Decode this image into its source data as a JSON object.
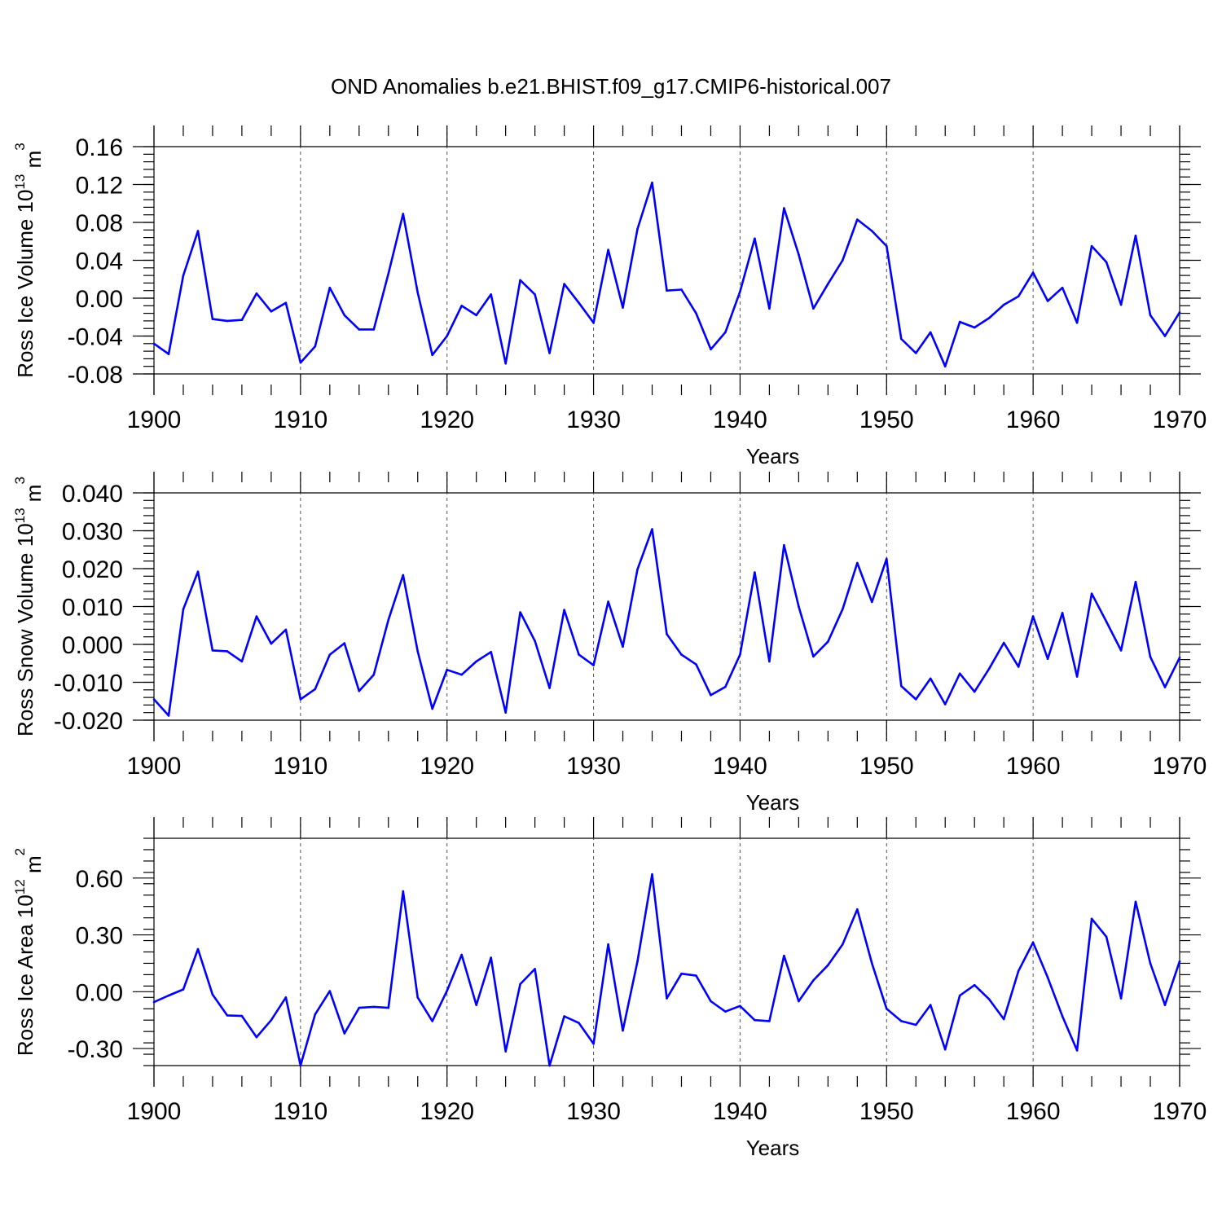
{
  "title": "OND Anomalies b.e21.BHIST.f09_g17.CMIP6-historical.007",
  "colors": {
    "line": "#0000ff",
    "axis": "#000000",
    "grid": "#555555"
  },
  "chart_data": [
    {
      "type": "line",
      "xlabel": "Years",
      "ylabel_main": "Ross Ice Volume 10",
      "ylabel_exp": "13",
      "ylabel_unit": " m",
      "ylabel_unit_exp": "3",
      "xlim": [
        1900,
        1970
      ],
      "ylim": [
        -0.08,
        0.16
      ],
      "y_major_ticks": [
        -0.08,
        -0.04,
        0.0,
        0.04,
        0.08,
        0.12,
        0.16
      ],
      "y_tick_labels": [
        "-0.08",
        "-0.04",
        "0.00",
        "0.04",
        "0.08",
        "0.12",
        "0.16"
      ],
      "y_minor_step": 0.008,
      "x_major_ticks": [
        1900,
        1910,
        1920,
        1930,
        1940,
        1950,
        1960,
        1970
      ],
      "x_tick_labels": [
        "1900",
        "1910",
        "1920",
        "1930",
        "1940",
        "1950",
        "1960",
        "1970"
      ],
      "grid_x": [
        1910,
        1920,
        1930,
        1940,
        1950,
        1960
      ],
      "x": [
        1900,
        1901,
        1902,
        1903,
        1904,
        1905,
        1906,
        1907,
        1908,
        1909,
        1910,
        1911,
        1912,
        1913,
        1914,
        1915,
        1916,
        1917,
        1918,
        1919,
        1920,
        1921,
        1922,
        1923,
        1924,
        1925,
        1926,
        1927,
        1928,
        1929,
        1930,
        1931,
        1932,
        1933,
        1934,
        1935,
        1936,
        1937,
        1938,
        1939,
        1940,
        1941,
        1942,
        1943,
        1944,
        1945,
        1946,
        1947,
        1948,
        1949,
        1950,
        1951,
        1952,
        1953,
        1954,
        1955,
        1956,
        1957,
        1958,
        1959,
        1960,
        1961,
        1962,
        1963,
        1964,
        1965,
        1966,
        1967,
        1968,
        1969,
        1970
      ],
      "values": [
        -0.048,
        -0.059,
        0.024,
        0.071,
        -0.022,
        -0.024,
        -0.023,
        0.005,
        -0.014,
        -0.005,
        -0.068,
        -0.051,
        0.011,
        -0.018,
        -0.033,
        -0.033,
        0.026,
        0.089,
        0.006,
        -0.06,
        -0.04,
        -0.008,
        -0.018,
        0.004,
        -0.069,
        0.019,
        0.004,
        -0.058,
        0.015,
        -0.005,
        -0.026,
        0.051,
        -0.01,
        0.073,
        0.122,
        0.008,
        0.009,
        -0.016,
        -0.054,
        -0.036,
        0.007,
        0.063,
        -0.011,
        0.095,
        0.046,
        -0.011,
        0.015,
        0.04,
        0.083,
        0.071,
        0.055,
        -0.043,
        -0.058,
        -0.036,
        -0.072,
        -0.025,
        -0.031,
        -0.021,
        -0.007,
        0.002,
        0.027,
        -0.003,
        0.011,
        -0.026,
        0.055,
        0.038,
        -0.007,
        0.066,
        -0.018,
        -0.04,
        -0.015
      ]
    },
    {
      "type": "line",
      "xlabel": "Years",
      "ylabel_main": "Ross Snow Volume 10",
      "ylabel_exp": "13",
      "ylabel_unit": " m",
      "ylabel_unit_exp": "3",
      "xlim": [
        1900,
        1970
      ],
      "ylim": [
        -0.02,
        0.04
      ],
      "y_major_ticks": [
        -0.02,
        -0.01,
        0.0,
        0.01,
        0.02,
        0.03,
        0.04
      ],
      "y_tick_labels": [
        "-0.020",
        "-0.010",
        "0.000",
        "0.010",
        "0.020",
        "0.030",
        "0.040"
      ],
      "y_minor_step": 0.002,
      "x_major_ticks": [
        1900,
        1910,
        1920,
        1930,
        1940,
        1950,
        1960,
        1970
      ],
      "x_tick_labels": [
        "1900",
        "1910",
        "1920",
        "1930",
        "1940",
        "1950",
        "1960",
        "1970"
      ],
      "grid_x": [
        1910,
        1920,
        1930,
        1940,
        1950,
        1960
      ],
      "x": [
        1900,
        1901,
        1902,
        1903,
        1904,
        1905,
        1906,
        1907,
        1908,
        1909,
        1910,
        1911,
        1912,
        1913,
        1914,
        1915,
        1916,
        1917,
        1918,
        1919,
        1920,
        1921,
        1922,
        1923,
        1924,
        1925,
        1926,
        1927,
        1928,
        1929,
        1930,
        1931,
        1932,
        1933,
        1934,
        1935,
        1936,
        1937,
        1938,
        1939,
        1940,
        1941,
        1942,
        1943,
        1944,
        1945,
        1946,
        1947,
        1948,
        1949,
        1950,
        1951,
        1952,
        1953,
        1954,
        1955,
        1956,
        1957,
        1958,
        1959,
        1960,
        1961,
        1962,
        1963,
        1964,
        1965,
        1966,
        1967,
        1968,
        1969,
        1970
      ],
      "values": [
        -0.0145,
        -0.0188,
        0.0093,
        0.0192,
        -0.0016,
        -0.0018,
        -0.0045,
        0.0074,
        0.0002,
        0.0039,
        -0.0145,
        -0.0118,
        -0.0027,
        0.0003,
        -0.0123,
        -0.008,
        0.0065,
        0.0183,
        -0.0018,
        -0.017,
        -0.0067,
        -0.008,
        -0.0045,
        -0.002,
        -0.018,
        0.0085,
        0.0009,
        -0.0115,
        0.0091,
        -0.0027,
        -0.0055,
        0.0113,
        -0.0006,
        0.0198,
        0.0304,
        0.0027,
        -0.0027,
        -0.0053,
        -0.0134,
        -0.0112,
        -0.0027,
        0.019,
        -0.0045,
        0.0262,
        0.01,
        -0.0032,
        0.0007,
        0.0093,
        0.0215,
        0.0112,
        0.0226,
        -0.011,
        -0.0145,
        -0.009,
        -0.0158,
        -0.0077,
        -0.0125,
        -0.0064,
        0.0004,
        -0.0059,
        0.0074,
        -0.0038,
        0.0083,
        -0.0085,
        0.0134,
        0.006,
        -0.0016,
        0.0165,
        -0.0033,
        -0.0113,
        -0.0035
      ]
    },
    {
      "type": "line",
      "xlabel": "Years",
      "ylabel_main": "Ross Ice Area 10",
      "ylabel_exp": "12",
      "ylabel_unit": " m",
      "ylabel_unit_exp": "2",
      "xlim": [
        1900,
        1970
      ],
      "ylim": [
        -0.39,
        0.81
      ],
      "y_major_ticks": [
        -0.3,
        0.0,
        0.3,
        0.6
      ],
      "y_tick_labels": [
        "-0.30",
        "0.00",
        "0.30",
        "0.60"
      ],
      "y_minor_step": 0.06,
      "x_major_ticks": [
        1900,
        1910,
        1920,
        1930,
        1940,
        1950,
        1960,
        1970
      ],
      "x_tick_labels": [
        "1900",
        "1910",
        "1920",
        "1930",
        "1940",
        "1950",
        "1960",
        "1970"
      ],
      "grid_x": [
        1910,
        1920,
        1930,
        1940,
        1950,
        1960
      ],
      "x": [
        1900,
        1901,
        1902,
        1903,
        1904,
        1905,
        1906,
        1907,
        1908,
        1909,
        1910,
        1911,
        1912,
        1913,
        1914,
        1915,
        1916,
        1917,
        1918,
        1919,
        1920,
        1921,
        1922,
        1923,
        1924,
        1925,
        1926,
        1927,
        1928,
        1929,
        1930,
        1931,
        1932,
        1933,
        1934,
        1935,
        1936,
        1937,
        1938,
        1939,
        1940,
        1941,
        1942,
        1943,
        1944,
        1945,
        1946,
        1947,
        1948,
        1949,
        1950,
        1951,
        1952,
        1953,
        1954,
        1955,
        1956,
        1957,
        1958,
        1959,
        1960,
        1961,
        1962,
        1963,
        1964,
        1965,
        1966,
        1967,
        1968,
        1969,
        1970
      ],
      "values": [
        -0.055,
        -0.02,
        0.012,
        0.225,
        -0.015,
        -0.125,
        -0.128,
        -0.24,
        -0.15,
        -0.03,
        -0.39,
        -0.12,
        0.003,
        -0.22,
        -0.085,
        -0.08,
        -0.085,
        0.53,
        -0.03,
        -0.155,
        0.005,
        0.195,
        -0.07,
        0.18,
        -0.315,
        0.04,
        0.12,
        -0.39,
        -0.13,
        -0.165,
        -0.275,
        0.25,
        -0.205,
        0.16,
        0.62,
        -0.035,
        0.095,
        0.085,
        -0.05,
        -0.105,
        -0.075,
        -0.15,
        -0.155,
        0.19,
        -0.05,
        0.06,
        0.14,
        0.25,
        0.435,
        0.15,
        -0.09,
        -0.155,
        -0.175,
        -0.07,
        -0.305,
        -0.02,
        0.035,
        -0.04,
        -0.145,
        0.11,
        0.26,
        0.075,
        -0.13,
        -0.31,
        0.385,
        0.29,
        -0.035,
        0.475,
        0.15,
        -0.07,
        0.16
      ]
    }
  ]
}
